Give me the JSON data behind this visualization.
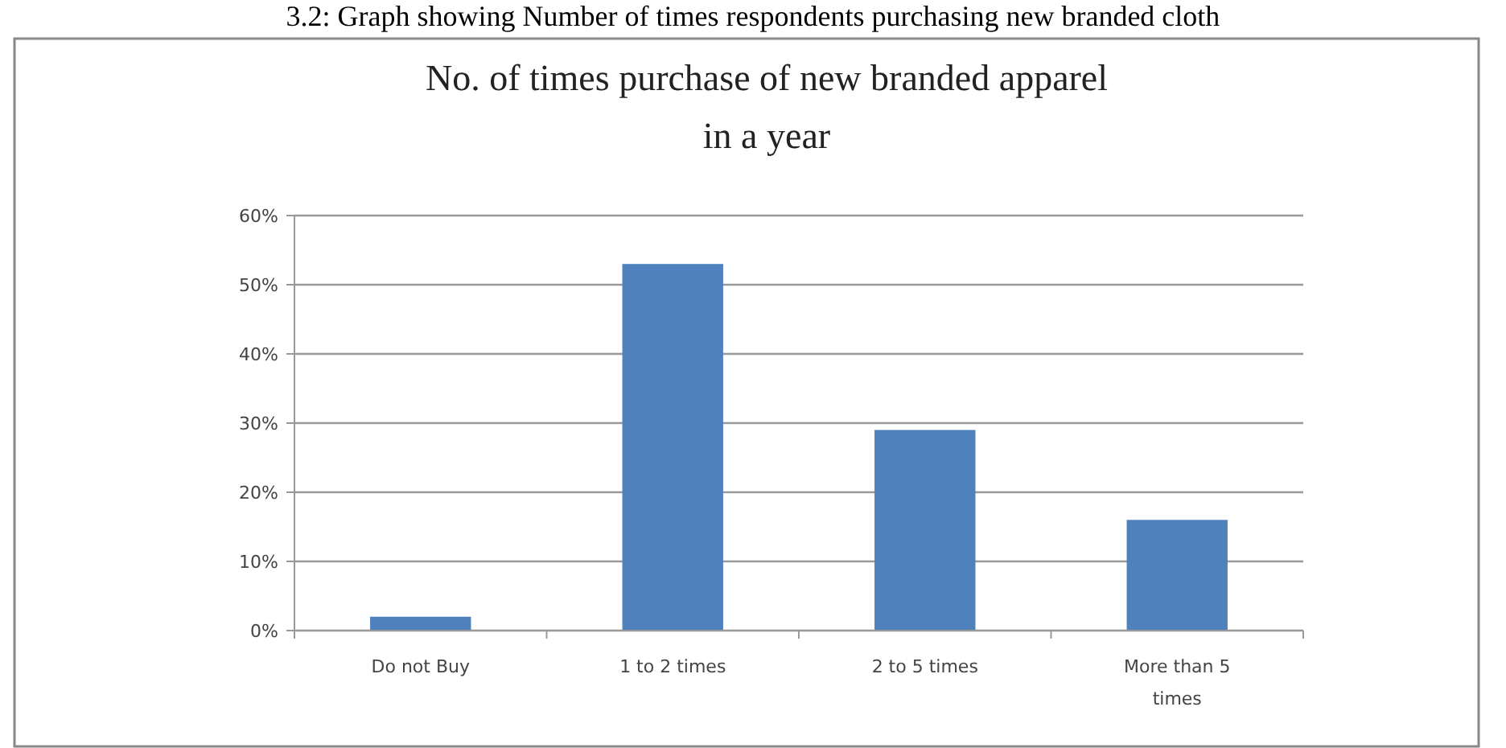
{
  "chart_data": {
    "type": "bar",
    "title": "No. of times purchase of new branded apparel in a year",
    "annotations": [
      "3.2: Graph showing Number of times respondents purchasing new branded cloth"
    ],
    "categories": [
      "Do not Buy",
      "1 to 2 times",
      "2 to 5 times",
      "More than 5 times"
    ],
    "values": [
      2,
      53,
      29,
      16
    ],
    "color": "#4f81bd",
    "ylim": [
      0,
      60
    ],
    "yticks": [
      {
        "value": 0,
        "label": "0%"
      },
      {
        "value": 10,
        "label": "10%"
      },
      {
        "value": 20,
        "label": "20%"
      },
      {
        "value": 30,
        "label": "30%"
      },
      {
        "value": 40,
        "label": "40%"
      },
      {
        "value": 50,
        "label": "50%"
      },
      {
        "value": 60,
        "label": "60%"
      }
    ],
    "grid": "y"
  }
}
